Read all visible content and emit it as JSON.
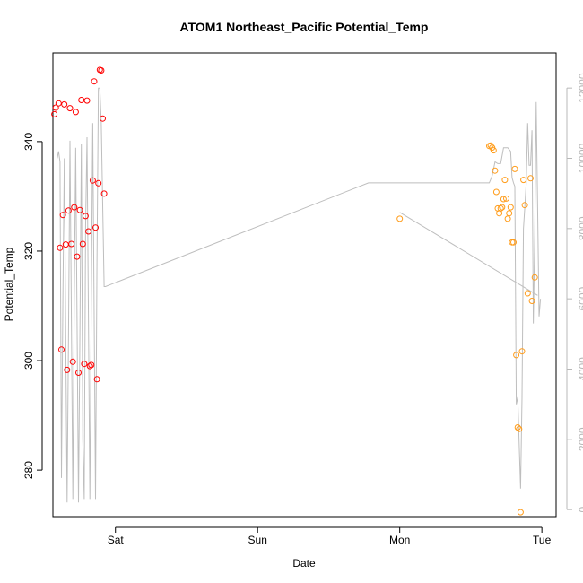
{
  "chart_data": {
    "type": "scatter",
    "title": "ATOM1 Northeast_Pacific Potential_Temp",
    "xlabel": "Date",
    "ylabel": "Potential_Temp",
    "x_ticks": [
      {
        "label": "Sat",
        "value": 1.0
      },
      {
        "label": "Sun",
        "value": 2.0
      },
      {
        "label": "Mon",
        "value": 3.0
      },
      {
        "label": "Tue",
        "value": 4.0
      }
    ],
    "xlim": [
      0.56,
      4.1
    ],
    "ylim": [
      271.5,
      356.2
    ],
    "y_ticks": [
      280,
      300,
      320,
      340
    ],
    "y2lim": [
      -200,
      13000
    ],
    "y2_ticks": [
      0,
      2000,
      4000,
      6000,
      8000,
      10000,
      12000
    ],
    "grid": false,
    "series": [
      {
        "color": "#ff0000",
        "points": [
          [
            0.57,
            345.0
          ],
          [
            0.58,
            346.2
          ],
          [
            0.6,
            347.0
          ],
          [
            0.61,
            320.6
          ],
          [
            0.62,
            302.0
          ],
          [
            0.63,
            326.6
          ],
          [
            0.64,
            346.8
          ],
          [
            0.65,
            321.2
          ],
          [
            0.66,
            298.3
          ],
          [
            0.67,
            327.4
          ],
          [
            0.68,
            346.1
          ],
          [
            0.69,
            321.3
          ],
          [
            0.7,
            299.8
          ],
          [
            0.71,
            328.0
          ],
          [
            0.72,
            345.4
          ],
          [
            0.73,
            319.0
          ],
          [
            0.74,
            297.8
          ],
          [
            0.75,
            327.5
          ],
          [
            0.76,
            347.6
          ],
          [
            0.77,
            321.3
          ],
          [
            0.78,
            299.4
          ],
          [
            0.79,
            326.4
          ],
          [
            0.8,
            347.5
          ],
          [
            0.81,
            323.6
          ],
          [
            0.82,
            299.0
          ],
          [
            0.83,
            299.2
          ],
          [
            0.84,
            332.9
          ],
          [
            0.85,
            351.0
          ],
          [
            0.86,
            324.3
          ],
          [
            0.87,
            296.6
          ],
          [
            0.88,
            332.4
          ],
          [
            0.89,
            353.1
          ],
          [
            0.9,
            353.0
          ],
          [
            0.91,
            344.2
          ],
          [
            0.92,
            330.5
          ]
        ]
      },
      {
        "color": "#ff9c1a",
        "points": [
          [
            3.0,
            325.9
          ],
          [
            3.63,
            339.2
          ],
          [
            3.64,
            339.3
          ],
          [
            3.65,
            338.9
          ],
          [
            3.66,
            338.4
          ],
          [
            3.67,
            334.7
          ],
          [
            3.68,
            330.8
          ],
          [
            3.69,
            327.8
          ],
          [
            3.7,
            326.9
          ],
          [
            3.71,
            327.8
          ],
          [
            3.72,
            328.0
          ],
          [
            3.73,
            329.5
          ],
          [
            3.74,
            333.0
          ],
          [
            3.75,
            329.6
          ],
          [
            3.76,
            325.9
          ],
          [
            3.77,
            326.9
          ],
          [
            3.78,
            328.0
          ],
          [
            3.79,
            321.6
          ],
          [
            3.8,
            321.6
          ],
          [
            3.81,
            335.0
          ],
          [
            3.82,
            301.0
          ],
          [
            3.83,
            287.8
          ],
          [
            3.84,
            287.5
          ],
          [
            3.85,
            272.3
          ],
          [
            3.86,
            301.7
          ],
          [
            3.87,
            333.0
          ],
          [
            3.88,
            328.4
          ],
          [
            3.9,
            312.3
          ],
          [
            3.92,
            333.3
          ],
          [
            3.93,
            310.9
          ],
          [
            3.95,
            315.2
          ]
        ]
      }
    ],
    "secondary_line": {
      "color": "#bebebe",
      "points": [
        [
          0.59,
          10000
        ],
        [
          0.6,
          10200
        ],
        [
          0.61,
          9900
        ],
        [
          0.62,
          900
        ],
        [
          0.63,
          6000
        ],
        [
          0.64,
          10000
        ],
        [
          0.66,
          200
        ],
        [
          0.67,
          5000
        ],
        [
          0.68,
          10500
        ],
        [
          0.7,
          300
        ],
        [
          0.71,
          6000
        ],
        [
          0.72,
          10300
        ],
        [
          0.74,
          200
        ],
        [
          0.75,
          5000
        ],
        [
          0.76,
          10400
        ],
        [
          0.77,
          2000
        ],
        [
          0.78,
          300
        ],
        [
          0.79,
          8000
        ],
        [
          0.8,
          10600
        ],
        [
          0.82,
          300
        ],
        [
          0.83,
          6000
        ],
        [
          0.84,
          11000
        ],
        [
          0.86,
          300
        ],
        [
          0.87,
          7000
        ],
        [
          0.88,
          12000
        ],
        [
          0.89,
          12000
        ],
        [
          0.9,
          11000
        ],
        [
          0.92,
          6350
        ],
        [
          0.93,
          6350
        ],
        [
          2.78,
          9300
        ],
        [
          3.63,
          9300
        ],
        [
          3.65,
          9500
        ],
        [
          3.67,
          9900
        ],
        [
          3.69,
          9850
        ],
        [
          3.71,
          9850
        ],
        [
          3.73,
          10300
        ],
        [
          3.76,
          10300
        ],
        [
          3.78,
          10200
        ],
        [
          3.79,
          9450
        ],
        [
          3.8,
          9300
        ],
        [
          3.81,
          9200
        ],
        [
          3.82,
          3000
        ],
        [
          3.83,
          3200
        ],
        [
          3.85,
          600
        ],
        [
          3.86,
          3200
        ],
        [
          3.87,
          8000
        ],
        [
          3.88,
          8600
        ],
        [
          3.89,
          9300
        ],
        [
          3.9,
          11000
        ],
        [
          3.91,
          9800
        ],
        [
          3.92,
          9800
        ],
        [
          3.93,
          10800
        ],
        [
          3.94,
          5300
        ],
        [
          3.95,
          7800
        ],
        [
          3.96,
          11600
        ],
        [
          3.97,
          8600
        ],
        [
          3.98,
          5500
        ],
        [
          3.99,
          6000
        ]
      ]
    },
    "secondary_segment": {
      "color": "#bebebe",
      "points": [
        [
          3.0,
          8460
        ],
        [
          3.97,
          6100
        ]
      ]
    }
  }
}
